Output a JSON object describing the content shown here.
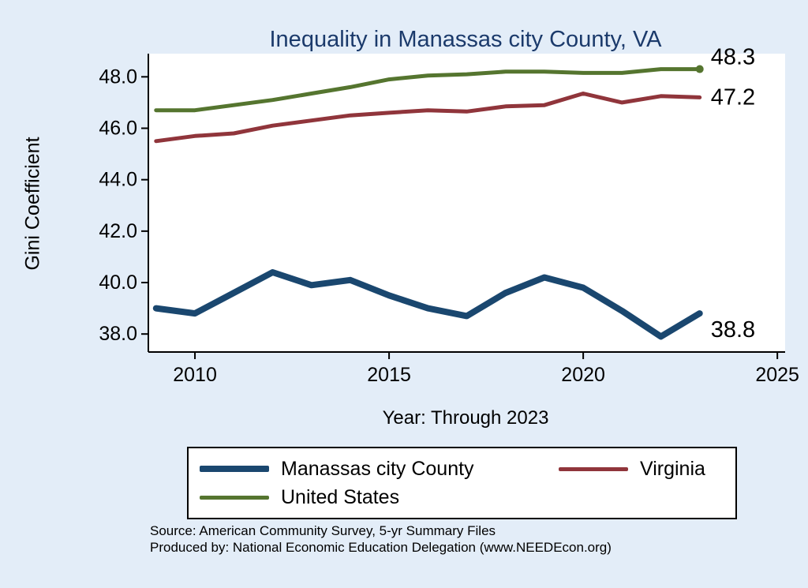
{
  "chart_data": {
    "type": "line",
    "title": "Inequality in Manassas city County, VA",
    "xlabel": "Year: Through 2023",
    "ylabel": "Gini Coefficient",
    "x": [
      2009,
      2010,
      2011,
      2012,
      2013,
      2014,
      2015,
      2016,
      2017,
      2018,
      2019,
      2020,
      2021,
      2022,
      2023
    ],
    "series": [
      {
        "name": "Manassas city County",
        "color": "#1a476f",
        "line_width": 8,
        "values": [
          39.0,
          38.8,
          39.6,
          40.4,
          39.9,
          40.1,
          39.5,
          39.0,
          38.7,
          39.6,
          40.2,
          39.8,
          38.9,
          37.9,
          38.8
        ],
        "end_label": "38.8",
        "end_label_dy": 21,
        "end_marker": false
      },
      {
        "name": "Virginia",
        "color": "#90353b",
        "line_width": 5,
        "values": [
          45.5,
          45.7,
          45.8,
          46.1,
          46.3,
          46.5,
          46.6,
          46.7,
          46.65,
          46.85,
          46.9,
          47.35,
          47.0,
          47.25,
          47.2
        ],
        "end_label": "47.2",
        "end_label_dy": 0,
        "end_marker": false
      },
      {
        "name": "United States",
        "color": "#55752f",
        "line_width": 5,
        "values": [
          46.7,
          46.7,
          46.9,
          47.1,
          47.35,
          47.6,
          47.9,
          48.05,
          48.1,
          48.2,
          48.2,
          48.15,
          48.15,
          48.3,
          48.3
        ],
        "end_label": "48.3",
        "end_label_dy": -15,
        "end_marker": true
      }
    ],
    "xlim": [
      2008.8,
      2025.2
    ],
    "ylim": [
      37.3,
      48.9
    ],
    "xticks": [
      2010,
      2015,
      2020,
      2025
    ],
    "xtick_labels": [
      "2010",
      "2015",
      "2020",
      "2025"
    ],
    "yticks": [
      38,
      40,
      42,
      44,
      46,
      48
    ],
    "ytick_labels": [
      "38.0",
      "40.0",
      "42.0",
      "44.0",
      "46.0",
      "48.0"
    ],
    "grid": false,
    "legend_position": "bottom"
  },
  "colors": {
    "background": "#e3edf8",
    "plot_background": "#ffffff",
    "axis": "#000000",
    "title": "#1b3a6b"
  },
  "source": {
    "line1": "Source: American Community Survey, 5-yr Summary Files",
    "line2": "Produced by: National Economic Education Delegation (www.NEEDEcon.org)"
  }
}
